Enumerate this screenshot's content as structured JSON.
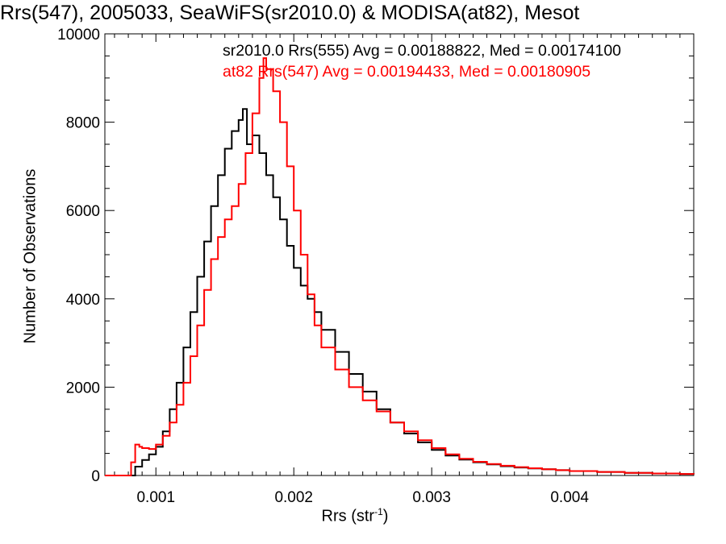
{
  "chart_data": {
    "type": "histogram-step",
    "title": "Rrs(547), 2005033, SeaWiFS(sr2010.0) & MODISA(at82), Mesot",
    "xlabel": "Rrs (str",
    "xlabel_sup": "-1",
    "xlabel_close": ")",
    "ylabel": "Number of Observations",
    "xlim": [
      0.00063,
      0.0049
    ],
    "ylim": [
      0,
      10000
    ],
    "xticks": [
      {
        "value": 0.001,
        "label": "0.001"
      },
      {
        "value": 0.002,
        "label": "0.002"
      },
      {
        "value": 0.003,
        "label": "0.003"
      },
      {
        "value": 0.004,
        "label": "0.004"
      }
    ],
    "yticks": [
      {
        "value": 0,
        "label": "0"
      },
      {
        "value": 2000,
        "label": "2000"
      },
      {
        "value": 4000,
        "label": "4000"
      },
      {
        "value": 6000,
        "label": "6000"
      },
      {
        "value": 8000,
        "label": "8000"
      },
      {
        "value": 10000,
        "label": "10000"
      }
    ],
    "annotations": [
      {
        "text": "sr2010.0 Rrs(555) Avg = 0.00188822, Med = 0.00174100",
        "color": "#000000"
      },
      {
        "text": "at82 Rrs(547) Avg = 0.00194433, Med = 0.00180905",
        "color": "#ff0000"
      }
    ],
    "series": [
      {
        "color": "#000000",
        "points": [
          [
            0.0008,
            0
          ],
          [
            0.00083,
            0
          ],
          [
            0.00085,
            200
          ],
          [
            0.0009,
            350
          ],
          [
            0.00095,
            480
          ],
          [
            0.001,
            650
          ],
          [
            0.00105,
            1000
          ],
          [
            0.0011,
            1500
          ],
          [
            0.00115,
            2100
          ],
          [
            0.0012,
            2900
          ],
          [
            0.00125,
            3700
          ],
          [
            0.0013,
            4500
          ],
          [
            0.00135,
            5300
          ],
          [
            0.0014,
            6100
          ],
          [
            0.00145,
            6800
          ],
          [
            0.0015,
            7400
          ],
          [
            0.00155,
            7800
          ],
          [
            0.0016,
            8050
          ],
          [
            0.00163,
            8300
          ],
          [
            0.00166,
            7500
          ],
          [
            0.0017,
            7700
          ],
          [
            0.00175,
            7300
          ],
          [
            0.0018,
            6800
          ],
          [
            0.00185,
            6300
          ],
          [
            0.0019,
            5800
          ],
          [
            0.00195,
            5200
          ],
          [
            0.002,
            4700
          ],
          [
            0.00205,
            4300
          ],
          [
            0.0021,
            4000
          ],
          [
            0.00215,
            3700
          ],
          [
            0.0022,
            3300
          ],
          [
            0.0023,
            2800
          ],
          [
            0.0024,
            2300
          ],
          [
            0.0025,
            1900
          ],
          [
            0.0026,
            1500
          ],
          [
            0.0027,
            1200
          ],
          [
            0.0028,
            950
          ],
          [
            0.0029,
            750
          ],
          [
            0.003,
            580
          ],
          [
            0.0031,
            450
          ],
          [
            0.0032,
            360
          ],
          [
            0.0033,
            300
          ],
          [
            0.0034,
            250
          ],
          [
            0.0035,
            210
          ],
          [
            0.0036,
            180
          ],
          [
            0.0037,
            160
          ],
          [
            0.0038,
            140
          ],
          [
            0.0039,
            120
          ],
          [
            0.004,
            100
          ],
          [
            0.0042,
            80
          ],
          [
            0.0044,
            60
          ],
          [
            0.0046,
            45
          ],
          [
            0.0048,
            35
          ],
          [
            0.0049,
            30
          ]
        ]
      },
      {
        "color": "#ff0000",
        "points": [
          [
            0.0008,
            0
          ],
          [
            0.00082,
            300
          ],
          [
            0.00085,
            700
          ],
          [
            0.00088,
            650
          ],
          [
            0.0009,
            620
          ],
          [
            0.00095,
            600
          ],
          [
            0.001,
            700
          ],
          [
            0.00105,
            900
          ],
          [
            0.0011,
            1200
          ],
          [
            0.00115,
            1600
          ],
          [
            0.0012,
            2100
          ],
          [
            0.00125,
            2700
          ],
          [
            0.0013,
            3400
          ],
          [
            0.00135,
            4200
          ],
          [
            0.0014,
            4900
          ],
          [
            0.00145,
            5400
          ],
          [
            0.0015,
            5800
          ],
          [
            0.00155,
            6100
          ],
          [
            0.0016,
            6600
          ],
          [
            0.00165,
            7300
          ],
          [
            0.0017,
            8200
          ],
          [
            0.00175,
            9000
          ],
          [
            0.00178,
            9450
          ],
          [
            0.0018,
            9200
          ],
          [
            0.00185,
            8700
          ],
          [
            0.0019,
            8000
          ],
          [
            0.00195,
            7000
          ],
          [
            0.002,
            6000
          ],
          [
            0.00205,
            5000
          ],
          [
            0.0021,
            4100
          ],
          [
            0.00215,
            3400
          ],
          [
            0.0022,
            2900
          ],
          [
            0.0023,
            2400
          ],
          [
            0.0024,
            2000
          ],
          [
            0.0025,
            1700
          ],
          [
            0.0026,
            1450
          ],
          [
            0.0027,
            1200
          ],
          [
            0.0028,
            1000
          ],
          [
            0.0029,
            800
          ],
          [
            0.003,
            620
          ],
          [
            0.0031,
            480
          ],
          [
            0.0032,
            380
          ],
          [
            0.0033,
            310
          ],
          [
            0.0034,
            260
          ],
          [
            0.0035,
            220
          ],
          [
            0.0036,
            190
          ],
          [
            0.0037,
            165
          ],
          [
            0.0038,
            140
          ],
          [
            0.0039,
            120
          ],
          [
            0.004,
            100
          ],
          [
            0.0042,
            80
          ],
          [
            0.0044,
            60
          ],
          [
            0.0046,
            45
          ],
          [
            0.0048,
            35
          ],
          [
            0.0049,
            30
          ]
        ]
      }
    ]
  }
}
